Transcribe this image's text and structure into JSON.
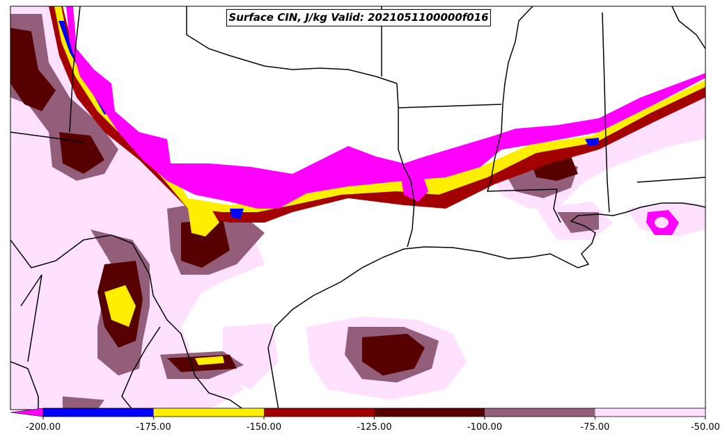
{
  "title": "Surface CIN, J/kg Valid: 2021051100000f016",
  "colorbar": {
    "bins": [
      {
        "from": -200,
        "to": -175,
        "color": "#0000ff"
      },
      {
        "from": -175,
        "to": -150,
        "color": "#ffee00"
      },
      {
        "from": -150,
        "to": -125,
        "color": "#a30000"
      },
      {
        "from": -125,
        "to": -100,
        "color": "#570000"
      },
      {
        "from": -100,
        "to": -75,
        "color": "#925e7a"
      },
      {
        "from": -75,
        "to": -50,
        "color": "#ffe0ff"
      }
    ],
    "under_color": "#ff00ff",
    "tick_labels": [
      "-200.00",
      "-175.00",
      "-150.00",
      "-125.00",
      "-100.00",
      "-75.00",
      "-50.00"
    ]
  },
  "colors": {
    "magenta": "#ff00ff",
    "blue": "#0000ff",
    "yellow": "#ffee00",
    "red": "#a30000",
    "darkred": "#570000",
    "mauve": "#925e7a",
    "pink": "#ffe0ff",
    "border": "#000000"
  }
}
